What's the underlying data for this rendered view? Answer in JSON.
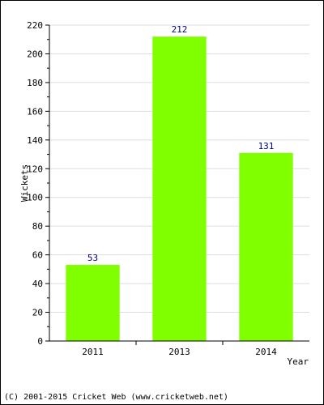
{
  "chart_data": {
    "type": "bar",
    "categories": [
      "2011",
      "2013",
      "2014"
    ],
    "values": [
      53,
      212,
      131
    ],
    "data_labels": [
      "53",
      "212",
      "131"
    ],
    "title": "",
    "xlabel": "Year",
    "ylabel": "Wickets",
    "ylim": [
      0,
      220
    ],
    "yticks": [
      0,
      20,
      40,
      60,
      80,
      100,
      120,
      140,
      160,
      180,
      200,
      220
    ],
    "grid": true,
    "colors": {
      "bar": "#80ff00",
      "label": "#000080",
      "grid": "#dddddd",
      "axis": "#000000"
    }
  },
  "footer": {
    "text": "(C) 2001-2015 Cricket Web (www.cricketweb.net)"
  }
}
